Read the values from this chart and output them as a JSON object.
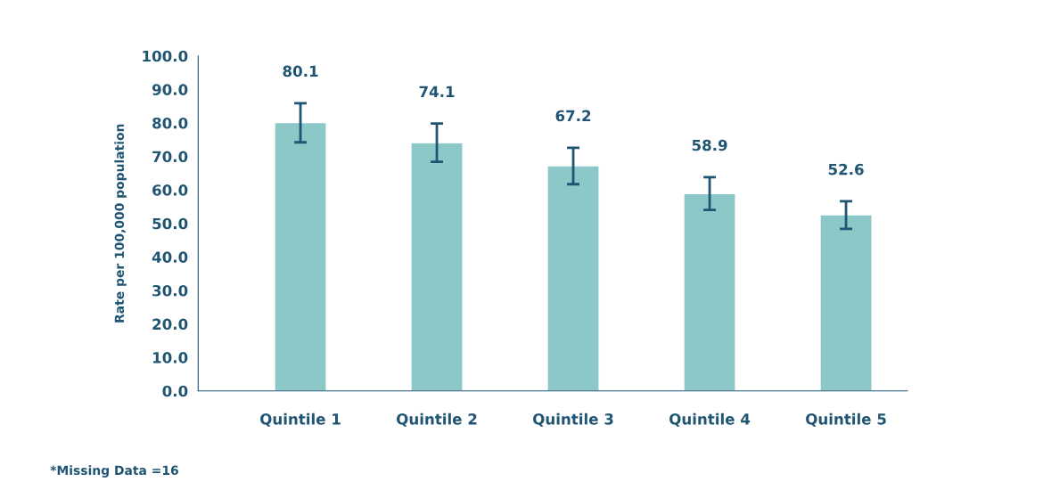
{
  "chart_data": {
    "type": "bar",
    "ylabel": "Rate per 100,000 population",
    "categories": [
      "Quintile 1",
      "Quintile 2",
      "Quintile 3",
      "Quintile 4",
      "Quintile 5"
    ],
    "values": [
      80.1,
      74.1,
      67.2,
      58.9,
      52.6
    ],
    "errors": [
      [
        74.2,
        85.9
      ],
      [
        68.4,
        79.8
      ],
      [
        61.7,
        72.6
      ],
      [
        54.0,
        63.8
      ],
      [
        48.4,
        56.6
      ]
    ],
    "color": "#8cc8c8",
    "data_labels": true,
    "ylim": [
      0,
      100
    ],
    "yticks": [
      {
        "value": 0,
        "label": "0.0"
      },
      {
        "value": 10,
        "label": "10.0"
      },
      {
        "value": 20,
        "label": "20.0"
      },
      {
        "value": 30,
        "label": "30.0"
      },
      {
        "value": 40,
        "label": "40.0"
      },
      {
        "value": 50,
        "label": "50.0"
      },
      {
        "value": 60,
        "label": "60.0"
      },
      {
        "value": 70,
        "label": "70.0"
      },
      {
        "value": 80,
        "label": "80.0"
      },
      {
        "value": 90,
        "label": "90.0"
      },
      {
        "value": 100,
        "label": "100.0"
      }
    ],
    "grid": false,
    "annotations": [
      "*Missing Data =16"
    ]
  }
}
